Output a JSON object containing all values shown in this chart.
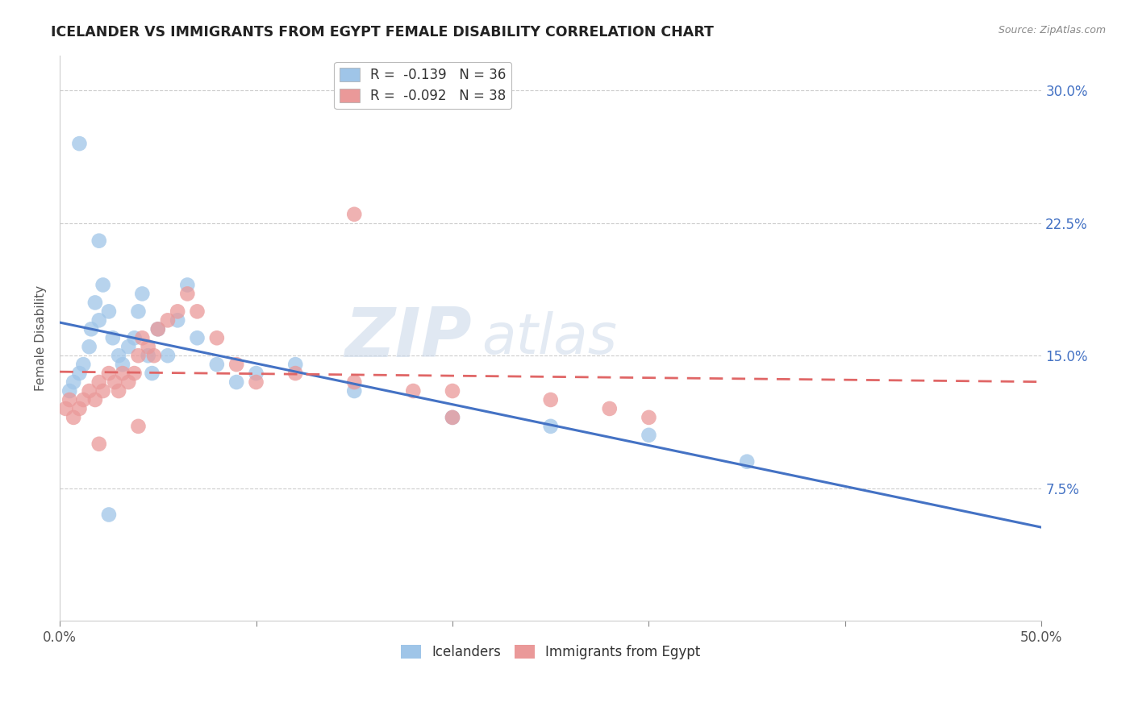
{
  "title": "ICELANDER VS IMMIGRANTS FROM EGYPT FEMALE DISABILITY CORRELATION CHART",
  "source": "Source: ZipAtlas.com",
  "ylabel": "Female Disability",
  "xlim": [
    0.0,
    0.5
  ],
  "ylim": [
    0.0,
    0.32
  ],
  "yticks": [
    0.075,
    0.15,
    0.225,
    0.3
  ],
  "ytick_labels": [
    "7.5%",
    "15.0%",
    "22.5%",
    "30.0%"
  ],
  "xticks": [
    0.0,
    0.1,
    0.2,
    0.3,
    0.4,
    0.5
  ],
  "xtick_labels": [
    "0.0%",
    "",
    "",
    "",
    "",
    "50.0%"
  ],
  "legend1_R": "-0.139",
  "legend1_N": "36",
  "legend2_R": "-0.092",
  "legend2_N": "38",
  "blue_color": "#9fc5e8",
  "pink_color": "#ea9999",
  "line_blue": "#4472c4",
  "line_pink": "#e06666",
  "watermark_zip": "ZIP",
  "watermark_atlas": "atlas",
  "icelander_x": [
    0.005,
    0.007,
    0.01,
    0.012,
    0.015,
    0.016,
    0.018,
    0.02,
    0.022,
    0.025,
    0.027,
    0.03,
    0.032,
    0.035,
    0.038,
    0.04,
    0.042,
    0.045,
    0.047,
    0.05,
    0.055,
    0.06,
    0.065,
    0.07,
    0.08,
    0.09,
    0.1,
    0.12,
    0.15,
    0.2,
    0.25,
    0.3,
    0.35,
    0.01,
    0.02,
    0.025
  ],
  "icelander_y": [
    0.13,
    0.135,
    0.14,
    0.145,
    0.155,
    0.165,
    0.18,
    0.17,
    0.19,
    0.175,
    0.16,
    0.15,
    0.145,
    0.155,
    0.16,
    0.175,
    0.185,
    0.15,
    0.14,
    0.165,
    0.15,
    0.17,
    0.19,
    0.16,
    0.145,
    0.135,
    0.14,
    0.145,
    0.13,
    0.115,
    0.11,
    0.105,
    0.09,
    0.27,
    0.215,
    0.06
  ],
  "egypt_x": [
    0.003,
    0.005,
    0.007,
    0.01,
    0.012,
    0.015,
    0.018,
    0.02,
    0.022,
    0.025,
    0.028,
    0.03,
    0.032,
    0.035,
    0.038,
    0.04,
    0.042,
    0.045,
    0.048,
    0.05,
    0.055,
    0.06,
    0.065,
    0.07,
    0.08,
    0.09,
    0.1,
    0.12,
    0.15,
    0.18,
    0.2,
    0.25,
    0.28,
    0.3,
    0.15,
    0.02,
    0.04,
    0.2
  ],
  "egypt_y": [
    0.12,
    0.125,
    0.115,
    0.12,
    0.125,
    0.13,
    0.125,
    0.135,
    0.13,
    0.14,
    0.135,
    0.13,
    0.14,
    0.135,
    0.14,
    0.15,
    0.16,
    0.155,
    0.15,
    0.165,
    0.17,
    0.175,
    0.185,
    0.175,
    0.16,
    0.145,
    0.135,
    0.14,
    0.135,
    0.13,
    0.13,
    0.125,
    0.12,
    0.115,
    0.23,
    0.1,
    0.11,
    0.115
  ]
}
